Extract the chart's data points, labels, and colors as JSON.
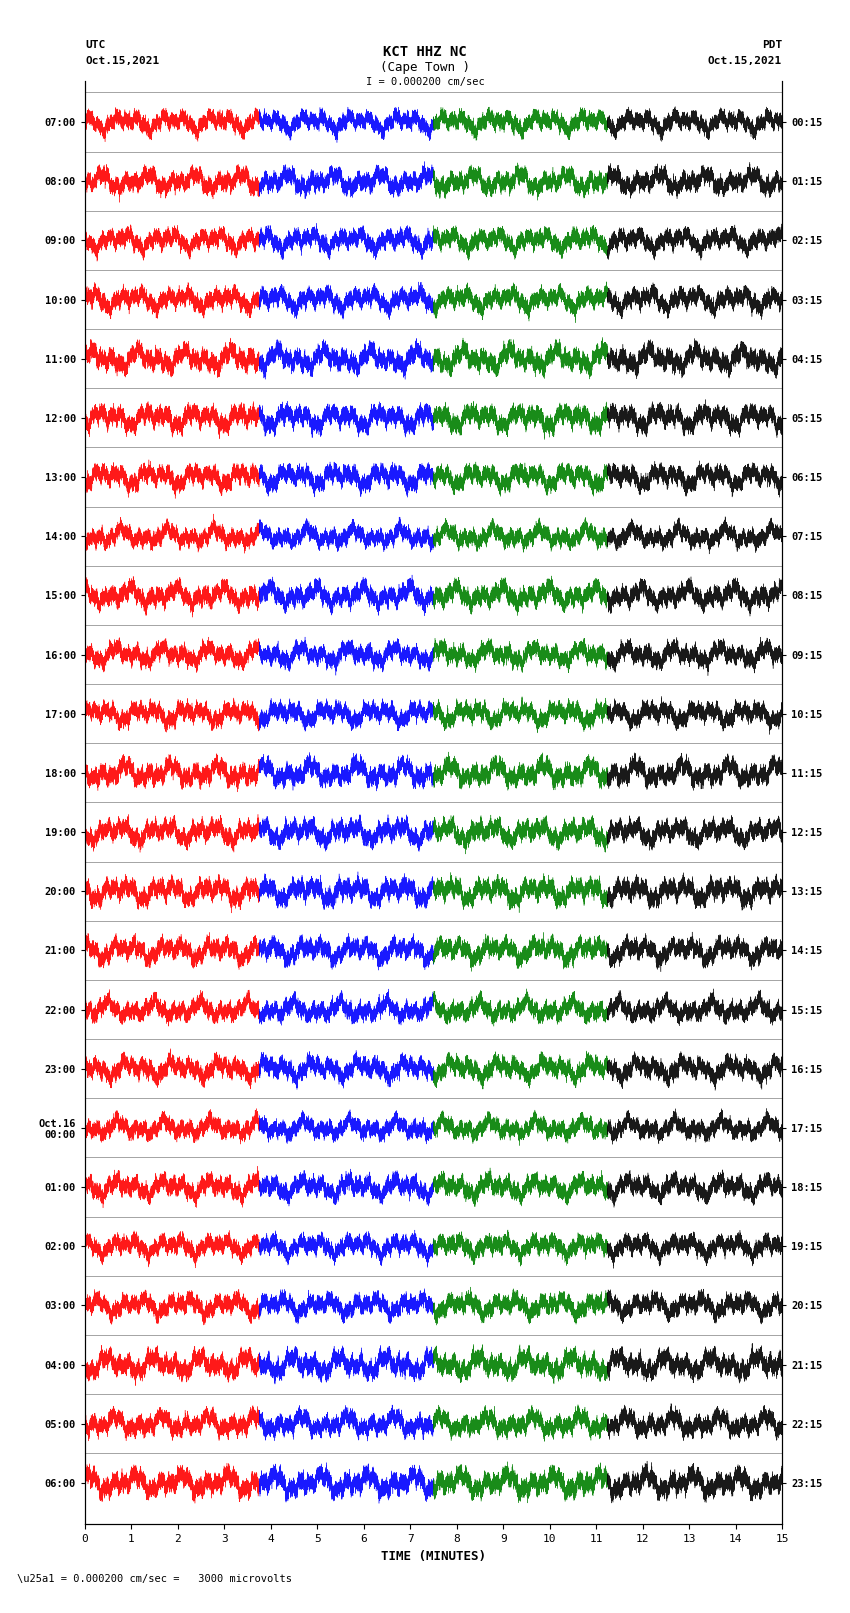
{
  "title_line1": "KCT HHZ NC",
  "title_line2": "(Cape Town )",
  "scale_label": "I = 0.000200 cm/sec",
  "bottom_label": "\\u25a1 = 0.000200 cm/sec =   3000 microvolts",
  "xlabel": "TIME (MINUTES)",
  "utc_label": "UTC",
  "utc_date": "Oct.15,2021",
  "pdt_label": "PDT",
  "pdt_date": "Oct.15,2021",
  "left_times": [
    "07:00",
    "08:00",
    "09:00",
    "10:00",
    "11:00",
    "12:00",
    "13:00",
    "14:00",
    "15:00",
    "16:00",
    "17:00",
    "18:00",
    "19:00",
    "20:00",
    "21:00",
    "22:00",
    "23:00",
    "Oct.16\n00:00",
    "01:00",
    "02:00",
    "03:00",
    "04:00",
    "05:00",
    "06:00"
  ],
  "right_times": [
    "00:15",
    "01:15",
    "02:15",
    "03:15",
    "04:15",
    "05:15",
    "06:15",
    "07:15",
    "08:15",
    "09:15",
    "10:15",
    "11:15",
    "12:15",
    "13:15",
    "14:15",
    "15:15",
    "16:15",
    "17:15",
    "18:15",
    "19:15",
    "20:15",
    "21:15",
    "22:15",
    "23:15"
  ],
  "num_traces": 24,
  "trace_duration_min": 15,
  "sample_rate": 100,
  "background_color": "#ffffff",
  "colors": [
    "red",
    "blue",
    "green",
    "black"
  ],
  "fig_width": 8.5,
  "fig_height": 16.13,
  "dpi": 100,
  "xmin": 0,
  "xmax": 15,
  "xticks": [
    0,
    1,
    2,
    3,
    4,
    5,
    6,
    7,
    8,
    9,
    10,
    11,
    12,
    13,
    14,
    15
  ]
}
